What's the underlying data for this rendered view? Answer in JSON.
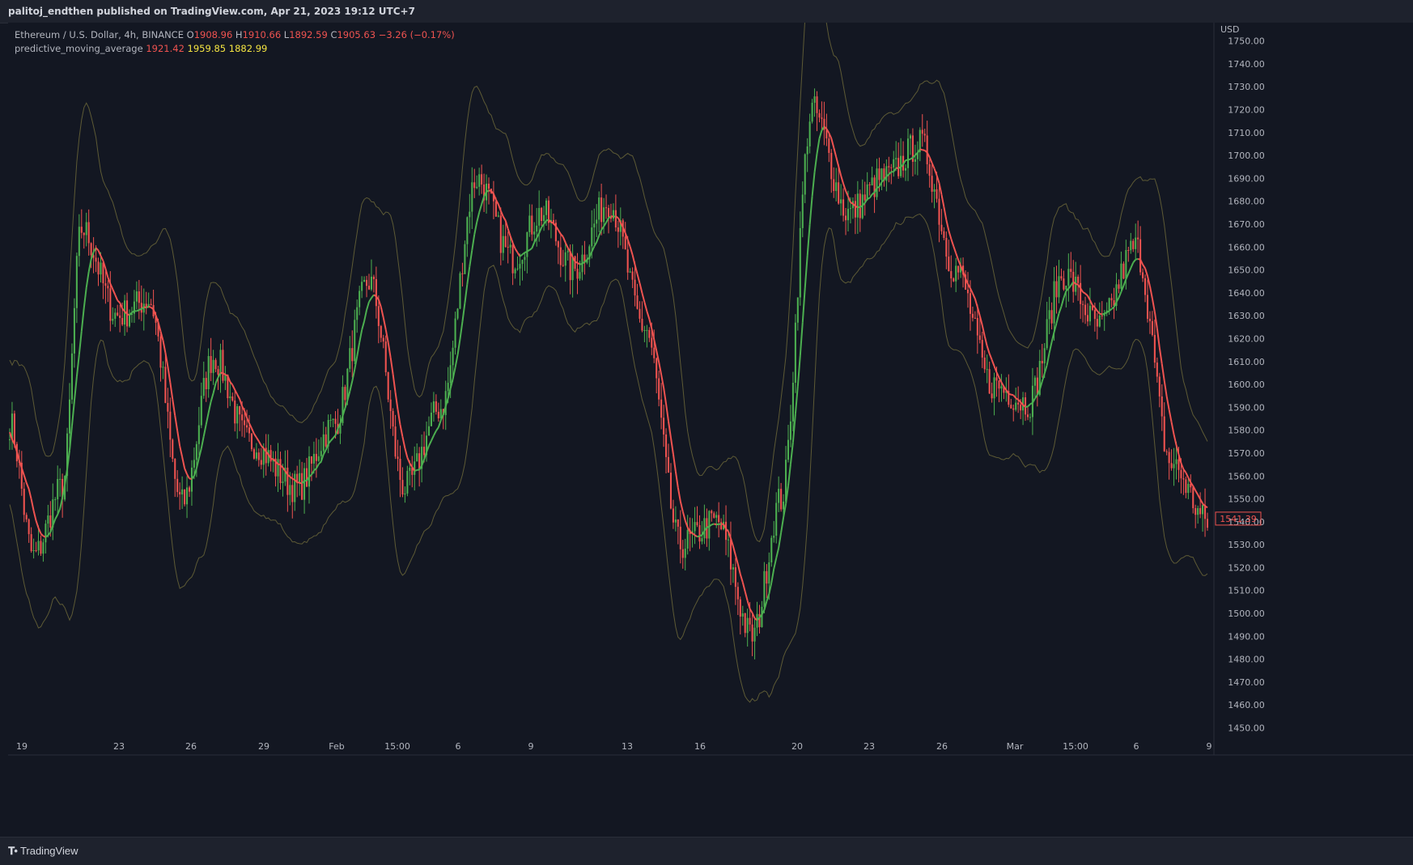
{
  "header": {
    "published": "palitoj_endthen published on TradingView.com, Apr 21, 2023 19:12 UTC+7"
  },
  "legend": {
    "symbol": "Ethereum / U.S. Dollar, 4h, BINANCE",
    "o_label": "O",
    "o": "1908.96",
    "h_label": "H",
    "h": "1910.66",
    "l_label": "L",
    "l": "1892.59",
    "c_label": "C",
    "c": "1905.63",
    "change": "−3.26 (−0.17%)",
    "indicator": "predictive_moving_average",
    "ind_v1": "1921.42",
    "ind_v2": "1959.85",
    "ind_v3": "1882.99"
  },
  "footer": {
    "brand": "TradingView",
    "logo": "tradingview-logo"
  },
  "colors": {
    "background": "#131722",
    "up": "#4caf50",
    "down": "#ef5350",
    "band": "#5d5a35",
    "last_price_box": "#ef5350"
  },
  "chart_data": {
    "type": "candlestick",
    "currency": "USD",
    "y_ticks": [
      1750,
      1740,
      1730,
      1720,
      1710,
      1700,
      1690,
      1680,
      1670,
      1660,
      1650,
      1640,
      1630,
      1620,
      1610,
      1600,
      1590,
      1580,
      1570,
      1560,
      1550,
      1540,
      1530,
      1520,
      1510,
      1500,
      1490,
      1480,
      1470,
      1460,
      1450
    ],
    "ylim": [
      1447,
      1758
    ],
    "x_ticks": [
      "19",
      "23",
      "26",
      "29",
      "Feb",
      "15:00",
      "6",
      "9",
      "13",
      "16",
      "20",
      "23",
      "26",
      "Mar",
      "15:00",
      "6",
      "9"
    ],
    "last_price": "1541.39",
    "grid": false,
    "description_points": {
      "close_anchor_index": [
        0,
        10,
        22,
        30,
        45,
        58,
        72,
        85,
        100,
        120,
        135,
        150,
        165,
        180,
        195,
        210,
        222,
        235,
        250,
        265,
        280,
        295,
        310,
        322,
        335,
        350,
        365,
        380,
        395,
        410,
        425,
        440,
        455,
        470,
        485,
        500
      ],
      "close_anchor_value": [
        1583,
        1525,
        1555,
        1668,
        1630,
        1637,
        1548,
        1612,
        1575,
        1555,
        1582,
        1645,
        1555,
        1590,
        1690,
        1655,
        1675,
        1650,
        1680,
        1625,
        1530,
        1540,
        1490,
        1550,
        1720,
        1675,
        1690,
        1705,
        1650,
        1600,
        1592,
        1648,
        1625,
        1660,
        1565,
        1540
      ]
    }
  }
}
